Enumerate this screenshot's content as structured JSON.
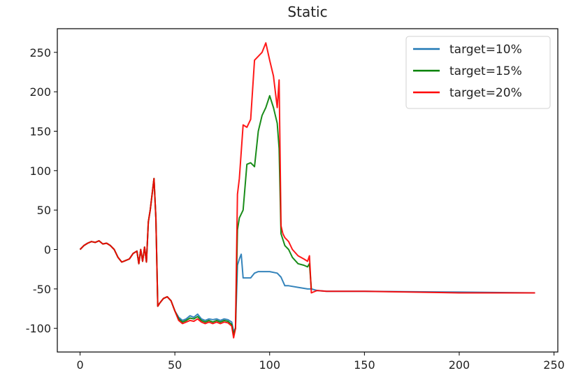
{
  "chart_data": {
    "type": "line",
    "title": "Static",
    "xlabel": "",
    "ylabel": "",
    "xlim": [
      -12,
      252
    ],
    "ylim": [
      -130,
      280
    ],
    "xticks": [
      0,
      50,
      100,
      150,
      200,
      250
    ],
    "yticks": [
      -100,
      -50,
      0,
      50,
      100,
      150,
      200,
      250
    ],
    "grid": false,
    "legend_position": "top-right",
    "series": [
      {
        "name": "target=10%",
        "color": "#1f77b4",
        "x": [
          0,
          2,
          4,
          6,
          8,
          10,
          12,
          14,
          16,
          18,
          20,
          22,
          24,
          26,
          28,
          30,
          31,
          32,
          33,
          34,
          35,
          36,
          37,
          38,
          39,
          40,
          41,
          42,
          44,
          46,
          48,
          50,
          52,
          54,
          56,
          58,
          60,
          62,
          64,
          66,
          68,
          70,
          72,
          74,
          76,
          78,
          80,
          81,
          82,
          83,
          84,
          85,
          86,
          88,
          90,
          92,
          94,
          96,
          100,
          104,
          106,
          108,
          110,
          115,
          120,
          121,
          122,
          125,
          130,
          150,
          200,
          240
        ],
        "y": [
          0,
          5,
          8,
          10,
          9,
          11,
          7,
          8,
          5,
          0,
          -10,
          -16,
          -14,
          -12,
          -5,
          -2,
          -18,
          0,
          -15,
          3,
          -16,
          35,
          50,
          70,
          90,
          40,
          -72,
          -68,
          -62,
          -60,
          -65,
          -78,
          -86,
          -90,
          -88,
          -84,
          -86,
          -82,
          -88,
          -90,
          -88,
          -89,
          -88,
          -90,
          -88,
          -89,
          -92,
          -104,
          -100,
          -20,
          -12,
          -6,
          -36,
          -36,
          -36,
          -30,
          -28,
          -28,
          -28,
          -30,
          -35,
          -46,
          -46,
          -48,
          -50,
          -50,
          -50,
          -52,
          -53,
          -53,
          -54,
          -55
        ]
      },
      {
        "name": "target=15%",
        "color": "#008000",
        "x": [
          0,
          2,
          4,
          6,
          8,
          10,
          12,
          14,
          16,
          18,
          20,
          22,
          24,
          26,
          28,
          30,
          31,
          32,
          33,
          34,
          35,
          36,
          37,
          38,
          39,
          40,
          41,
          42,
          44,
          46,
          48,
          50,
          52,
          54,
          56,
          58,
          60,
          62,
          64,
          66,
          68,
          70,
          72,
          74,
          76,
          78,
          80,
          81,
          82,
          83,
          84,
          86,
          88,
          90,
          92,
          94,
          96,
          98,
          100,
          102,
          104,
          105,
          106,
          108,
          110,
          112,
          115,
          118,
          120,
          121,
          122
        ],
        "y": [
          0,
          5,
          8,
          10,
          9,
          11,
          7,
          8,
          5,
          0,
          -10,
          -16,
          -14,
          -12,
          -5,
          -2,
          -18,
          0,
          -15,
          3,
          -16,
          35,
          50,
          70,
          90,
          40,
          -72,
          -68,
          -62,
          -60,
          -65,
          -78,
          -88,
          -92,
          -90,
          -87,
          -88,
          -85,
          -90,
          -92,
          -90,
          -92,
          -90,
          -92,
          -90,
          -91,
          -95,
          -108,
          -100,
          25,
          40,
          50,
          108,
          110,
          105,
          150,
          170,
          180,
          195,
          180,
          160,
          128,
          20,
          5,
          0,
          -10,
          -18,
          -20,
          -22,
          -18,
          -50
        ]
      },
      {
        "name": "target=20%",
        "color": "#ff0000",
        "x": [
          0,
          2,
          4,
          6,
          8,
          10,
          12,
          14,
          16,
          18,
          20,
          22,
          24,
          26,
          28,
          30,
          31,
          32,
          33,
          34,
          35,
          36,
          37,
          38,
          39,
          40,
          41,
          42,
          44,
          46,
          48,
          50,
          52,
          54,
          56,
          58,
          60,
          62,
          64,
          66,
          68,
          70,
          72,
          74,
          76,
          78,
          80,
          81,
          82,
          83,
          84,
          86,
          88,
          90,
          92,
          94,
          96,
          98,
          100,
          102,
          104,
          105,
          106,
          107,
          108,
          110,
          112,
          115,
          118,
          120,
          121,
          122,
          125,
          130,
          150,
          200,
          240
        ],
        "y": [
          0,
          5,
          8,
          10,
          9,
          11,
          7,
          8,
          5,
          0,
          -10,
          -16,
          -14,
          -12,
          -5,
          -2,
          -18,
          0,
          -15,
          3,
          -16,
          35,
          50,
          70,
          90,
          40,
          -72,
          -68,
          -62,
          -60,
          -65,
          -78,
          -90,
          -94,
          -92,
          -90,
          -91,
          -88,
          -92,
          -94,
          -92,
          -94,
          -92,
          -94,
          -92,
          -93,
          -97,
          -112,
          -100,
          70,
          90,
          158,
          155,
          165,
          240,
          245,
          250,
          262,
          240,
          220,
          180,
          215,
          30,
          20,
          15,
          10,
          0,
          -8,
          -12,
          -15,
          -8,
          -55,
          -52,
          -53,
          -53,
          -55,
          -55
        ]
      }
    ]
  }
}
